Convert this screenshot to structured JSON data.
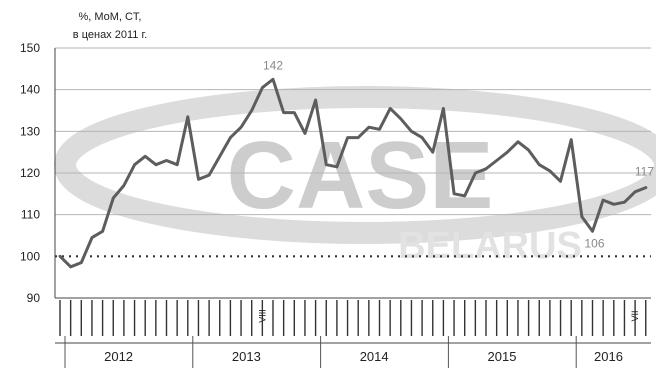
{
  "chart_data": {
    "type": "line",
    "unit_label_line1": "%, MoM, CT,",
    "unit_label_line2": "в ценах 2011 г.",
    "watermark": "CASE BELARUS",
    "ylim": [
      90,
      150
    ],
    "yticks": [
      150,
      140,
      130,
      120,
      110,
      100,
      90
    ],
    "grid": true,
    "baseline": 100,
    "years": [
      "2012",
      "2013",
      "2014",
      "2015",
      "2016"
    ],
    "month_markers": [
      {
        "text": "VIII",
        "index": 19
      },
      {
        "text": "VII",
        "index": 54
      }
    ],
    "series": [
      {
        "values": [
          100,
          97.5,
          98.5,
          104.5,
          106,
          114,
          117,
          122,
          124,
          122,
          123,
          122,
          133.5,
          118.5,
          119.5,
          124,
          128.5,
          131,
          135,
          140.5,
          142.5,
          134.5,
          134.5,
          129.5,
          137.5,
          122,
          121.5,
          128.5,
          128.5,
          131,
          130.5,
          135.5,
          133,
          130,
          128.5,
          125,
          135.5,
          115,
          114.5,
          120,
          121,
          123,
          125,
          127.5,
          125.5,
          122,
          120.5,
          118,
          128,
          109.5,
          106,
          113.5,
          112.5,
          113,
          115.5,
          116.5
        ]
      }
    ],
    "annotations": [
      {
        "text": "142",
        "index": 20
      },
      {
        "text": "106",
        "index": 50
      },
      {
        "text": "117",
        "index": 55
      }
    ],
    "colors": {
      "line": "#5d5d5d",
      "grid": "#b5b5b5",
      "watermark_gray": "#cdcdcd",
      "watermark_light": "#e2e2e2"
    }
  }
}
